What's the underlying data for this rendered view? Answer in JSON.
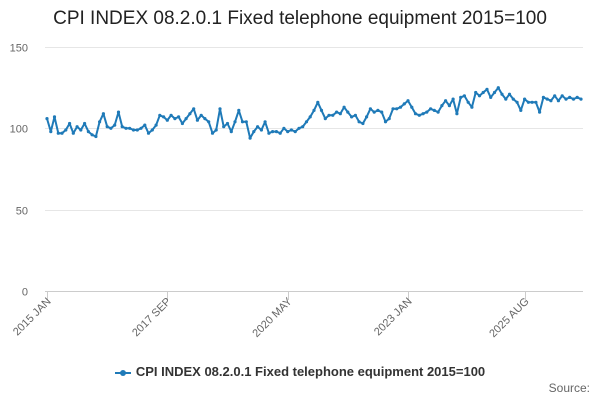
{
  "chart_data": {
    "type": "line",
    "title": "CPI INDEX 08.2.0.1 Fixed telephone equipment 2015=100",
    "xlabel": "",
    "ylabel": "",
    "ylim": [
      0,
      150
    ],
    "y_ticks": [
      0,
      50,
      100,
      150
    ],
    "x_ticks": [
      "2015 JAN",
      "2017 SEP",
      "2020 MAY",
      "2023 JAN",
      "2025 AUG"
    ],
    "x_start": "2015 JAN",
    "grid": true,
    "legend": "bottom",
    "series": [
      {
        "name": "CPI INDEX 08.2.0.1 Fixed telephone equipment 2015=100",
        "color": "#1f7ab8",
        "values": [
          106,
          98,
          107,
          97,
          97,
          99,
          103,
          97,
          101,
          99,
          103,
          98,
          96,
          95,
          104,
          109,
          101,
          100,
          102,
          110,
          101,
          100,
          100,
          99,
          99,
          100,
          102,
          97,
          99,
          102,
          108,
          107,
          105,
          108,
          106,
          107,
          103,
          106,
          109,
          112,
          105,
          108,
          106,
          104,
          97,
          99,
          112,
          101,
          103,
          98,
          104,
          111,
          104,
          104,
          94,
          98,
          101,
          99,
          104,
          97,
          98,
          98,
          97,
          100,
          98,
          99,
          98,
          100,
          101,
          104,
          107,
          111,
          116,
          111,
          106,
          108,
          108,
          110,
          109,
          113,
          110,
          107,
          108,
          104,
          103,
          107,
          112,
          110,
          111,
          110,
          104,
          106,
          112,
          112,
          113,
          115,
          117,
          113,
          109,
          108,
          109,
          110,
          112,
          111,
          110,
          114,
          117,
          114,
          118,
          109,
          119,
          120,
          116,
          113,
          122,
          120,
          122,
          124,
          119,
          122,
          125,
          121,
          118,
          121,
          118,
          116,
          111,
          118,
          116,
          116,
          116,
          110,
          119,
          118,
          117,
          120,
          117,
          120,
          118,
          119,
          118,
          119,
          118
        ]
      }
    ]
  },
  "credit": "Source:"
}
